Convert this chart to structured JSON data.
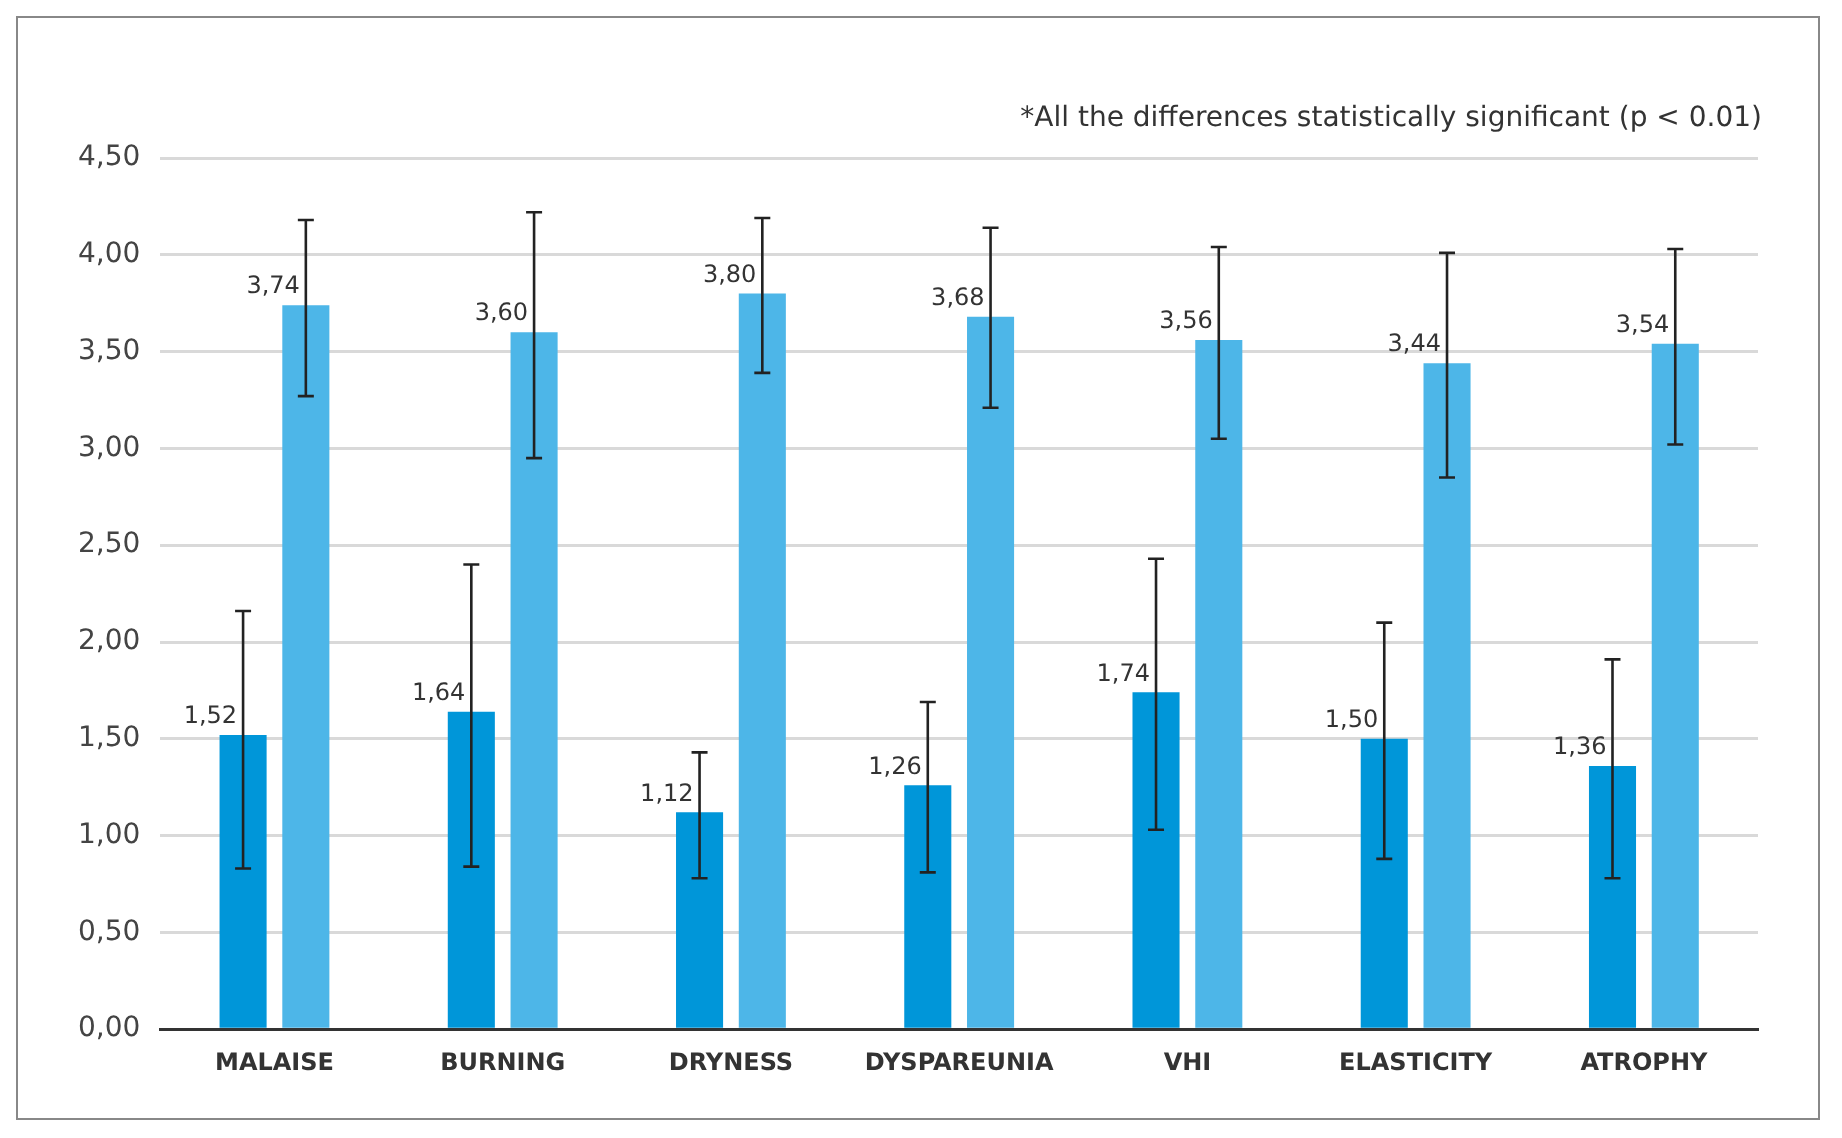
{
  "chart_data": {
    "type": "bar",
    "categories": [
      "MALAISE",
      "BURNING",
      "DRYNESS",
      "DYSPAREUNIA",
      "VHI",
      "ELASTICITY",
      "ATROPHY"
    ],
    "series": [
      {
        "color": "#0096d9",
        "values": [
          1.52,
          1.64,
          1.12,
          1.26,
          1.74,
          1.5,
          1.36
        ],
        "value_labels": [
          "1,52",
          "1,64",
          "1,12",
          "1,26",
          "1,74",
          "1,50",
          "1,36"
        ],
        "errors": [
          [
            0.83,
            2.16
          ],
          [
            0.84,
            2.4
          ],
          [
            0.78,
            1.43
          ],
          [
            0.81,
            1.69
          ],
          [
            1.03,
            2.43
          ],
          [
            0.88,
            2.1
          ],
          [
            0.78,
            1.91
          ]
        ]
      },
      {
        "color": "#4db6e8",
        "values": [
          3.74,
          3.6,
          3.8,
          3.68,
          3.56,
          3.44,
          3.54
        ],
        "value_labels": [
          "3,74",
          "3,60",
          "3,80",
          "3,68",
          "3,56",
          "3,44",
          "3,54"
        ],
        "errors": [
          [
            3.27,
            4.18
          ],
          [
            2.95,
            4.22
          ],
          [
            3.39,
            4.19
          ],
          [
            3.21,
            4.14
          ],
          [
            3.05,
            4.04
          ],
          [
            2.85,
            4.01
          ],
          [
            3.02,
            4.03
          ]
        ]
      }
    ],
    "ylim": [
      0,
      4.5
    ],
    "yticks": [
      {
        "value": 0,
        "label": "0,00"
      },
      {
        "value": 0.5,
        "label": "0,50"
      },
      {
        "value": 1,
        "label": "1,00"
      },
      {
        "value": 1.5,
        "label": "1,50"
      },
      {
        "value": 2,
        "label": "2,00"
      },
      {
        "value": 2.5,
        "label": "2,50"
      },
      {
        "value": 3,
        "label": "3,00"
      },
      {
        "value": 3.5,
        "label": "3,50"
      },
      {
        "value": 4,
        "label": "4,00"
      },
      {
        "value": 4.5,
        "label": "4,50"
      }
    ],
    "grid": "y",
    "legend": false,
    "annotations": [
      "*All the differences statistically significant (p < 0.01)"
    ]
  }
}
